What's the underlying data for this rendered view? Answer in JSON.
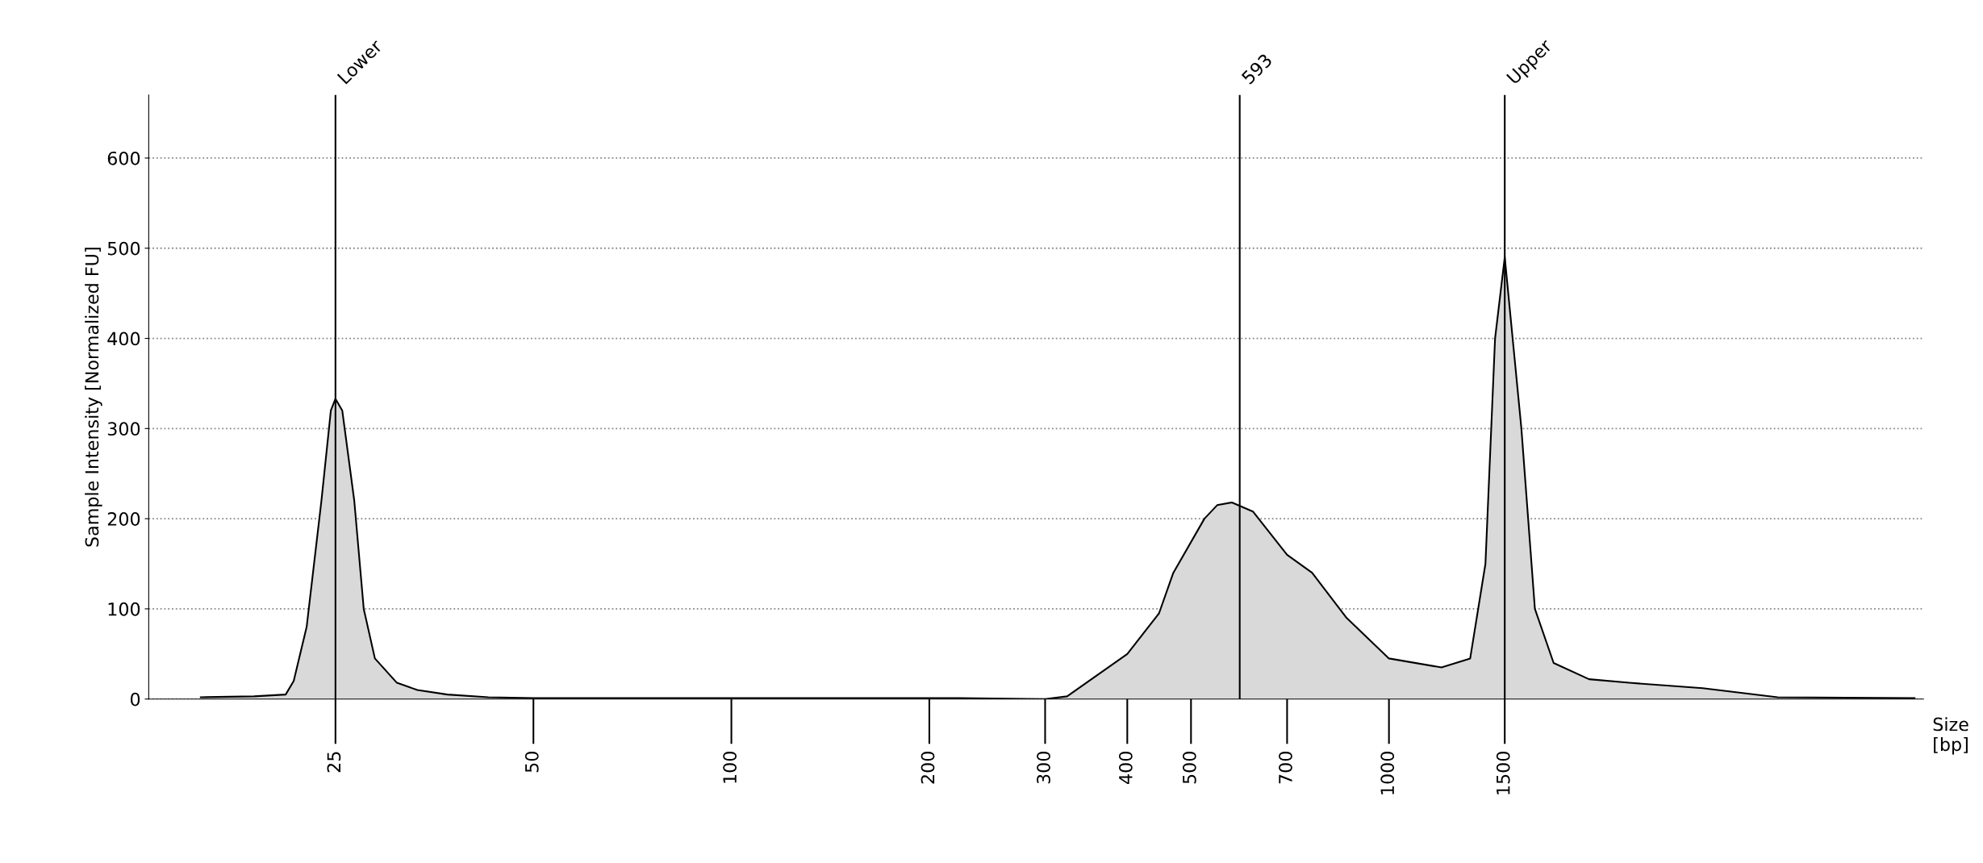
{
  "chart_data": {
    "type": "area",
    "ylabel": "Sample Intensity [Normalized FU]",
    "xlabel": "Size\n[bp]",
    "log": "x",
    "xlim": [
      13,
      6500
    ],
    "ylim": [
      0,
      670
    ],
    "xticks": [
      25,
      50,
      100,
      200,
      300,
      400,
      500,
      700,
      1000,
      1500
    ],
    "yticks": [
      0,
      100,
      200,
      300,
      400,
      500,
      600
    ],
    "grid": "y",
    "series": [
      {
        "color": "#d9d9d9",
        "x": [
          15.6,
          18.8,
          21.0,
          21.6,
          22.6,
          23.8,
          24.6,
          25,
          25.6,
          26.7,
          27.6,
          28.7,
          31,
          33.3,
          37,
          42.7,
          50,
          70,
          107,
          222,
          300,
          324,
          400,
          447,
          470,
          524,
          548,
          577,
          621,
          700,
          764,
          862,
          1000,
          1202,
          1329,
          1402,
          1450,
          1500,
          1590,
          1667,
          1780,
          2015,
          2320,
          3000,
          3900,
          6300
        ],
        "values": [
          2,
          3,
          5,
          20,
          80,
          220,
          320,
          333,
          320,
          220,
          100,
          45,
          18,
          10,
          5,
          2,
          1,
          1,
          1,
          1,
          0,
          3,
          50,
          95,
          140,
          200,
          215,
          218,
          208,
          160,
          140,
          90,
          45,
          35,
          45,
          150,
          400,
          490,
          300,
          100,
          40,
          22,
          18,
          12,
          2,
          1
        ]
      }
    ],
    "ref_lines": [
      {
        "axis": "x",
        "value": 25,
        "label": "Lower"
      },
      {
        "axis": "x",
        "value": 593,
        "label": "593"
      },
      {
        "axis": "x",
        "value": 1500,
        "label": "Upper"
      }
    ]
  }
}
